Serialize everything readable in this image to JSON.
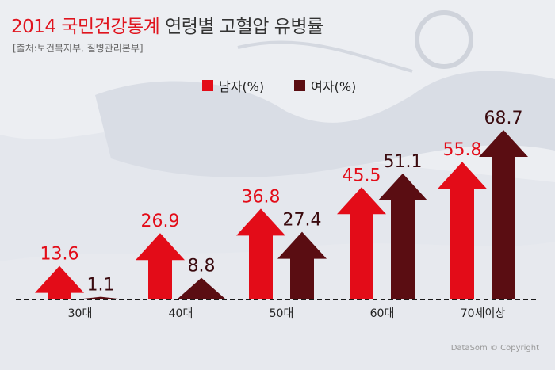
{
  "title": {
    "year_and_source": "2014 국민건강통계",
    "rest": "연령별 고혈압 유병률"
  },
  "source_note": "[출처:보건복지부, 질병관리본부]",
  "legend": [
    {
      "label": "남자(%)",
      "color": "#e30c18"
    },
    {
      "label": "여자(%)",
      "color": "#5a0d12"
    }
  ],
  "copyright": "DataSom © Copyright",
  "colors": {
    "male": "#e30c18",
    "female": "#5a0d12",
    "title_accent": "#e0141e"
  },
  "chart_data": {
    "type": "bar",
    "title": "2014 국민건강통계 연령별 고혈압 유병률",
    "categories": [
      "30대",
      "40대",
      "50대",
      "60대",
      "70세이상"
    ],
    "series": [
      {
        "name": "남자(%)",
        "values": [
          13.6,
          26.9,
          36.8,
          45.5,
          55.8
        ]
      },
      {
        "name": "여자(%)",
        "values": [
          1.1,
          8.8,
          27.4,
          51.1,
          68.7
        ]
      }
    ],
    "ylim": [
      0,
      70
    ],
    "xlabel": "",
    "ylabel": "",
    "grid": false,
    "legend_position": "top"
  }
}
